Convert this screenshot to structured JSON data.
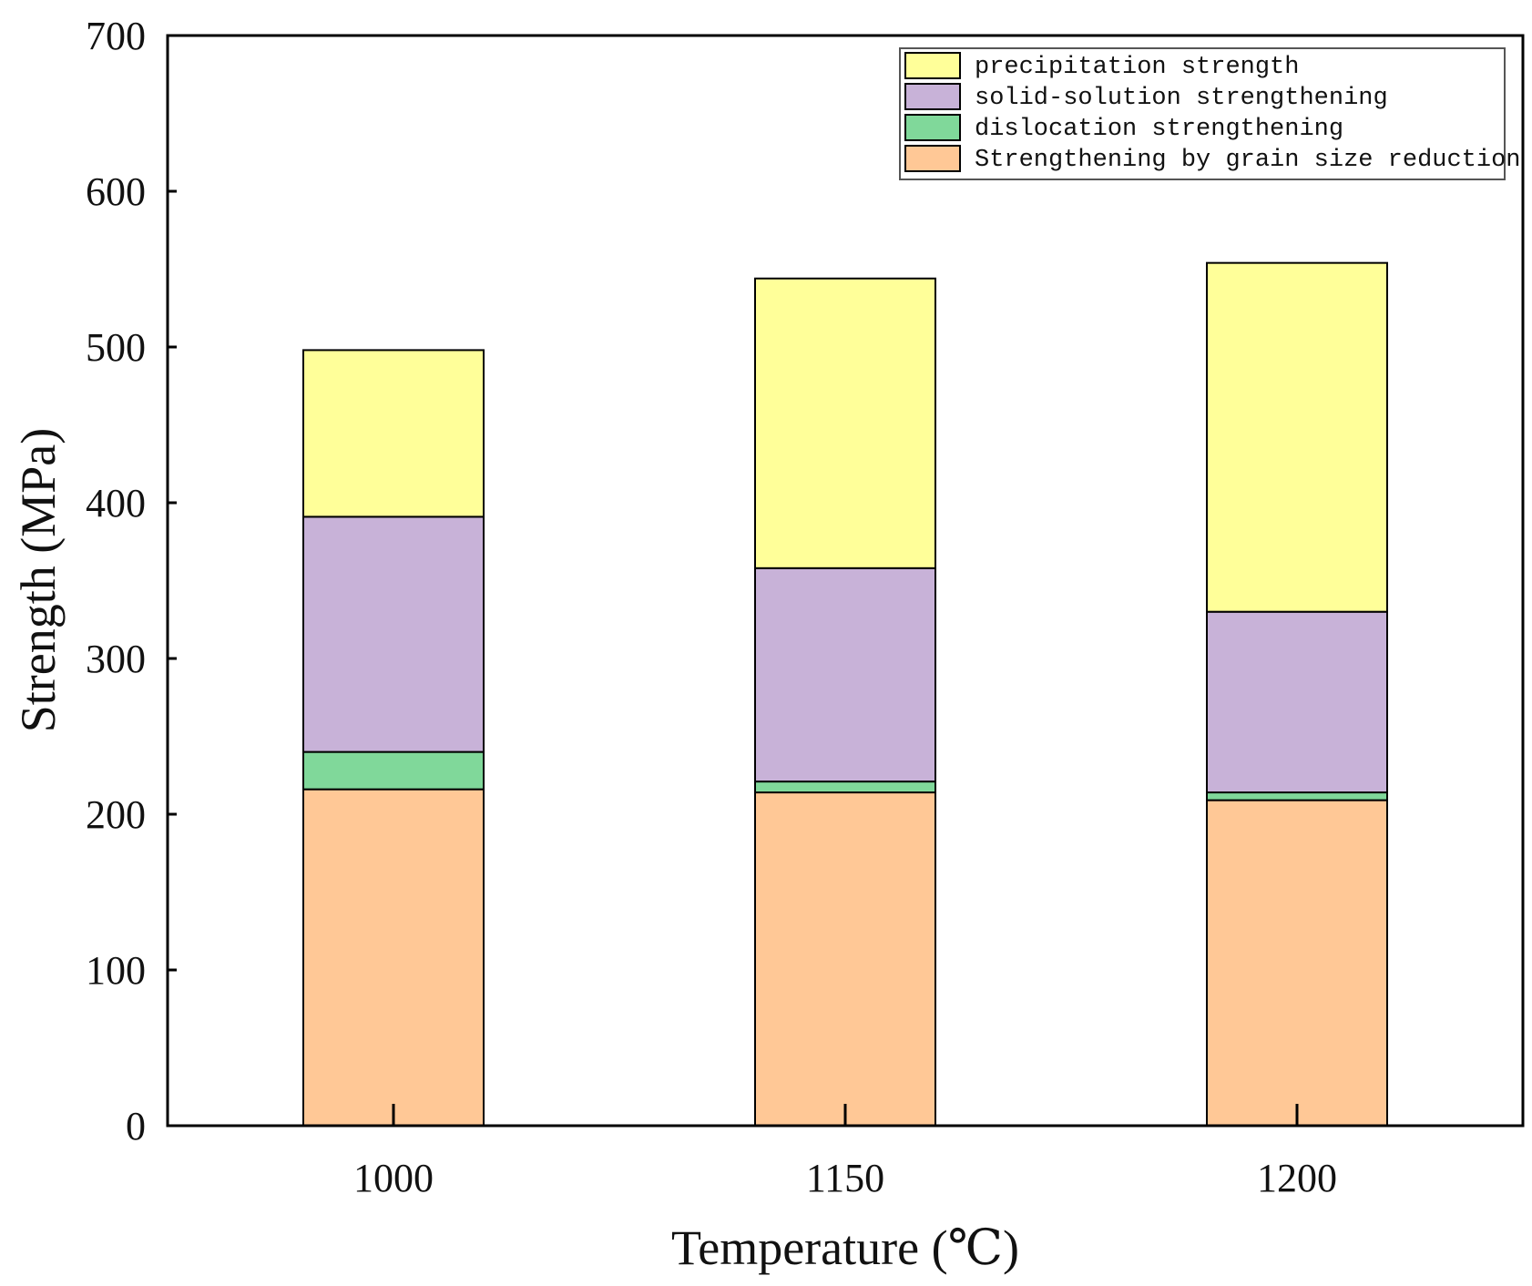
{
  "chart_data": {
    "type": "bar",
    "stacked": true,
    "categories": [
      "1000",
      "1150",
      "1200"
    ],
    "xlabel": "Temperature (℃)",
    "ylabel": "Strength (MPa)",
    "ylim": [
      0,
      700
    ],
    "yticks": [
      "0",
      "100",
      "200",
      "300",
      "400",
      "500",
      "600",
      "700"
    ],
    "legend_position": "top-right",
    "grid": false,
    "series": [
      {
        "name": "Strengthening by grain size reduction",
        "color": "#FFC896",
        "values": [
          216,
          214,
          209
        ]
      },
      {
        "name": "dislocation strengthening",
        "color": "#80D89A",
        "values": [
          24,
          7,
          5
        ]
      },
      {
        "name": "solid-solution strengthening",
        "color": "#C8B2D8",
        "values": [
          151,
          137,
          116
        ]
      },
      {
        "name": "precipitation strength",
        "color": "#FFFF99",
        "values": [
          107,
          186,
          224
        ]
      }
    ],
    "legend_order": [
      "precipitation strength",
      "solid-solution strengthening",
      "dislocation strengthening",
      "Strengthening by grain size reduction"
    ]
  }
}
